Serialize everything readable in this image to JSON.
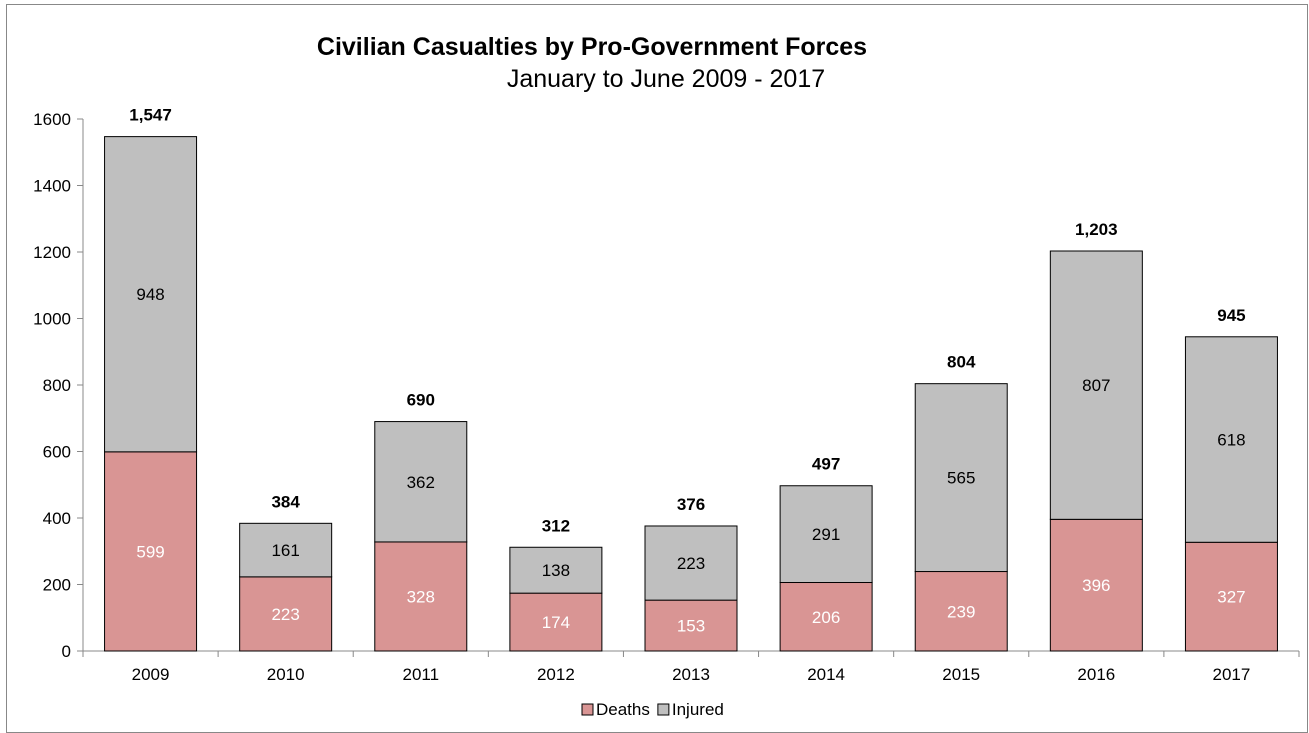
{
  "chart_data": {
    "type": "bar",
    "stacked": true,
    "title": "Civilian Casualties by Pro-Government Forces",
    "subtitle": "January to June 2009 - 2017",
    "categories": [
      "2009",
      "2010",
      "2011",
      "2012",
      "2013",
      "2014",
      "2015",
      "2016",
      "2017"
    ],
    "series": [
      {
        "name": "Deaths",
        "color": "#d99594",
        "label_color": "#ffffff",
        "values": [
          599,
          223,
          328,
          174,
          153,
          206,
          239,
          396,
          327
        ]
      },
      {
        "name": "Injured",
        "color": "#bfbfbf",
        "label_color": "#000000",
        "values": [
          948,
          161,
          362,
          138,
          223,
          291,
          565,
          807,
          618
        ]
      }
    ],
    "totals": [
      "1,547",
      "384",
      "690",
      "312",
      "376",
      "497",
      "804",
      "1,203",
      "945"
    ],
    "ylim": [
      0,
      1600
    ],
    "yticks": [
      0,
      200,
      400,
      600,
      800,
      1000,
      1200,
      1400,
      1600
    ],
    "grid": false,
    "legend_position": "bottom"
  }
}
